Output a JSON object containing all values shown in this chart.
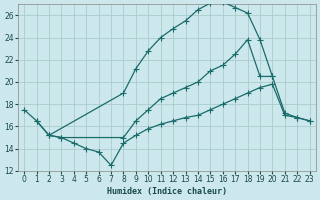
{
  "xlabel": "Humidex (Indice chaleur)",
  "xlim": [
    -0.5,
    23.5
  ],
  "ylim": [
    12,
    27
  ],
  "xticks": [
    0,
    1,
    2,
    3,
    4,
    5,
    6,
    7,
    8,
    9,
    10,
    11,
    12,
    13,
    14,
    15,
    16,
    17,
    18,
    19,
    20,
    21,
    22,
    23
  ],
  "yticks": [
    12,
    14,
    16,
    18,
    20,
    22,
    24,
    26
  ],
  "background_color": "#cce8ec",
  "grid_color": "#aacccc",
  "line_color": "#1a6b6b",
  "line1_x": [
    0,
    1,
    2,
    8,
    9,
    10,
    11,
    12,
    13,
    14,
    15,
    16,
    17,
    18,
    19,
    20
  ],
  "line1_y": [
    17.5,
    16.5,
    15.2,
    19.0,
    21.2,
    22.8,
    24.0,
    24.8,
    25.5,
    26.5,
    27.1,
    27.2,
    26.7,
    26.2,
    23.8,
    20.5
  ],
  "line2_x": [
    1,
    2,
    3,
    8,
    9,
    10,
    11,
    12,
    13,
    14,
    15,
    16,
    17,
    18,
    19,
    20,
    21,
    22,
    23
  ],
  "line2_y": [
    16.5,
    15.2,
    15.0,
    15.0,
    16.5,
    17.5,
    18.5,
    19.0,
    19.5,
    20.0,
    21.0,
    21.5,
    22.5,
    23.8,
    20.5,
    20.5,
    17.2,
    16.8,
    16.5
  ],
  "line3_x": [
    2,
    3,
    4,
    5,
    6,
    7,
    8,
    9,
    10,
    11,
    12,
    13,
    14,
    15,
    16,
    17,
    18,
    19,
    20,
    21,
    22,
    23
  ],
  "line3_y": [
    15.2,
    15.0,
    14.5,
    14.0,
    13.7,
    12.5,
    14.5,
    15.2,
    15.8,
    16.2,
    16.5,
    16.8,
    17.0,
    17.5,
    18.0,
    18.5,
    19.0,
    19.5,
    19.8,
    17.0,
    16.8,
    16.5
  ]
}
